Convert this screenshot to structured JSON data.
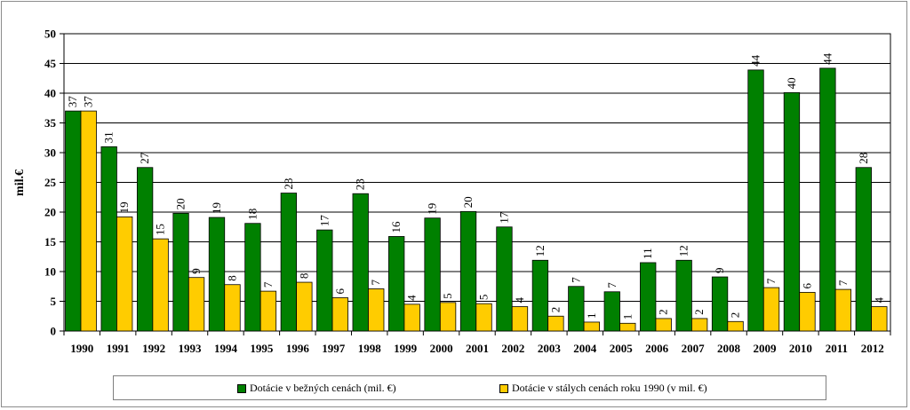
{
  "chart_data": {
    "type": "bar",
    "title": "",
    "xlabel": "",
    "ylabel": "mil.€",
    "ylim": [
      0,
      50
    ],
    "ytick_step": 5,
    "grid": true,
    "legend_position": "bottom",
    "categories": [
      "1990",
      "1991",
      "1992",
      "1993",
      "1994",
      "1995",
      "1996",
      "1997",
      "1998",
      "1999",
      "2000",
      "2001",
      "2002",
      "2003",
      "2004",
      "2005",
      "2006",
      "2007",
      "2008",
      "2009",
      "2010",
      "2011",
      "2012"
    ],
    "series": [
      {
        "name": "Dotácie v bežných cenách (mil. €)",
        "color": "#008000",
        "values": [
          37.0,
          31.0,
          27.5,
          19.8,
          19.1,
          18.1,
          23.2,
          17.0,
          23.1,
          15.9,
          19.0,
          20.1,
          17.5,
          11.9,
          7.5,
          6.6,
          11.5,
          11.9,
          9.1,
          43.9,
          40.1,
          44.2,
          27.5
        ],
        "labels": [
          "37",
          "31",
          "27",
          "20",
          "19",
          "18",
          "23",
          "17",
          "23",
          "16",
          "19",
          "20",
          "17",
          "12",
          "7",
          "7",
          "11",
          "12",
          "9",
          "44",
          "40",
          "44",
          "28"
        ]
      },
      {
        "name": "Dotácie v stálych cenách roku 1990 (v mil. €)",
        "color": "#FFCC00",
        "values": [
          37.0,
          19.2,
          15.5,
          9.0,
          7.8,
          6.7,
          8.2,
          5.6,
          7.1,
          4.5,
          4.8,
          4.6,
          4.1,
          2.5,
          1.5,
          1.3,
          2.1,
          2.1,
          1.6,
          7.3,
          6.5,
          7.0,
          4.1
        ],
        "labels": [
          "37",
          "19",
          "15",
          "9",
          "8",
          "7",
          "8",
          "6",
          "7",
          "4",
          "5",
          "5",
          "4",
          "2",
          "1",
          "1",
          "2",
          "2",
          "2",
          "7",
          "6",
          "7",
          "4"
        ]
      }
    ]
  }
}
